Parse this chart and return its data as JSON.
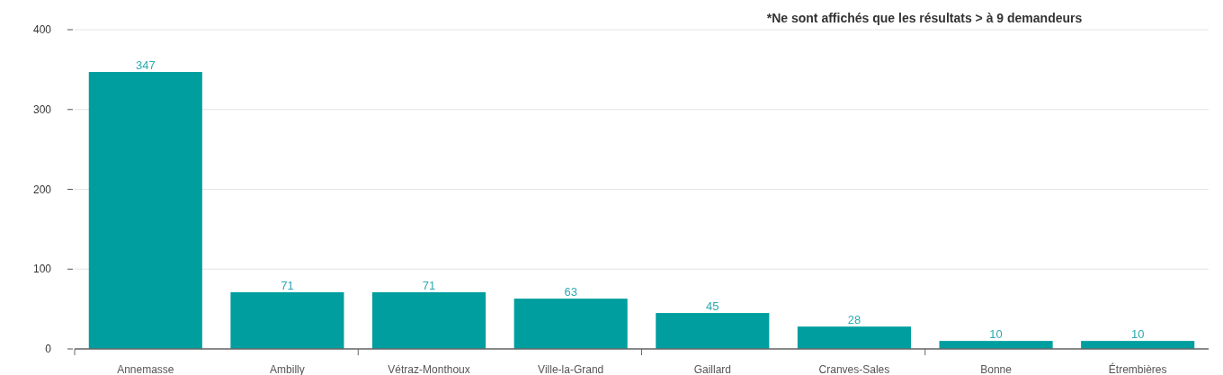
{
  "chart_data": {
    "type": "bar",
    "categories": [
      "Annemasse",
      "Ambilly",
      "Vétraz-Monthoux",
      "Ville-la-Grand",
      "Gaillard",
      "Cranves-Sales",
      "Bonne",
      "Étrembières"
    ],
    "values": [
      347,
      71,
      71,
      63,
      45,
      28,
      10,
      10
    ],
    "color": "#009e9e",
    "ylim": [
      0,
      400
    ],
    "yticks": [
      0,
      100,
      200,
      300,
      400
    ],
    "grid": "y",
    "data_labels": true,
    "annotations": [
      "*Ne sont affichés que les résultats > à 9 demandeurs"
    ]
  }
}
